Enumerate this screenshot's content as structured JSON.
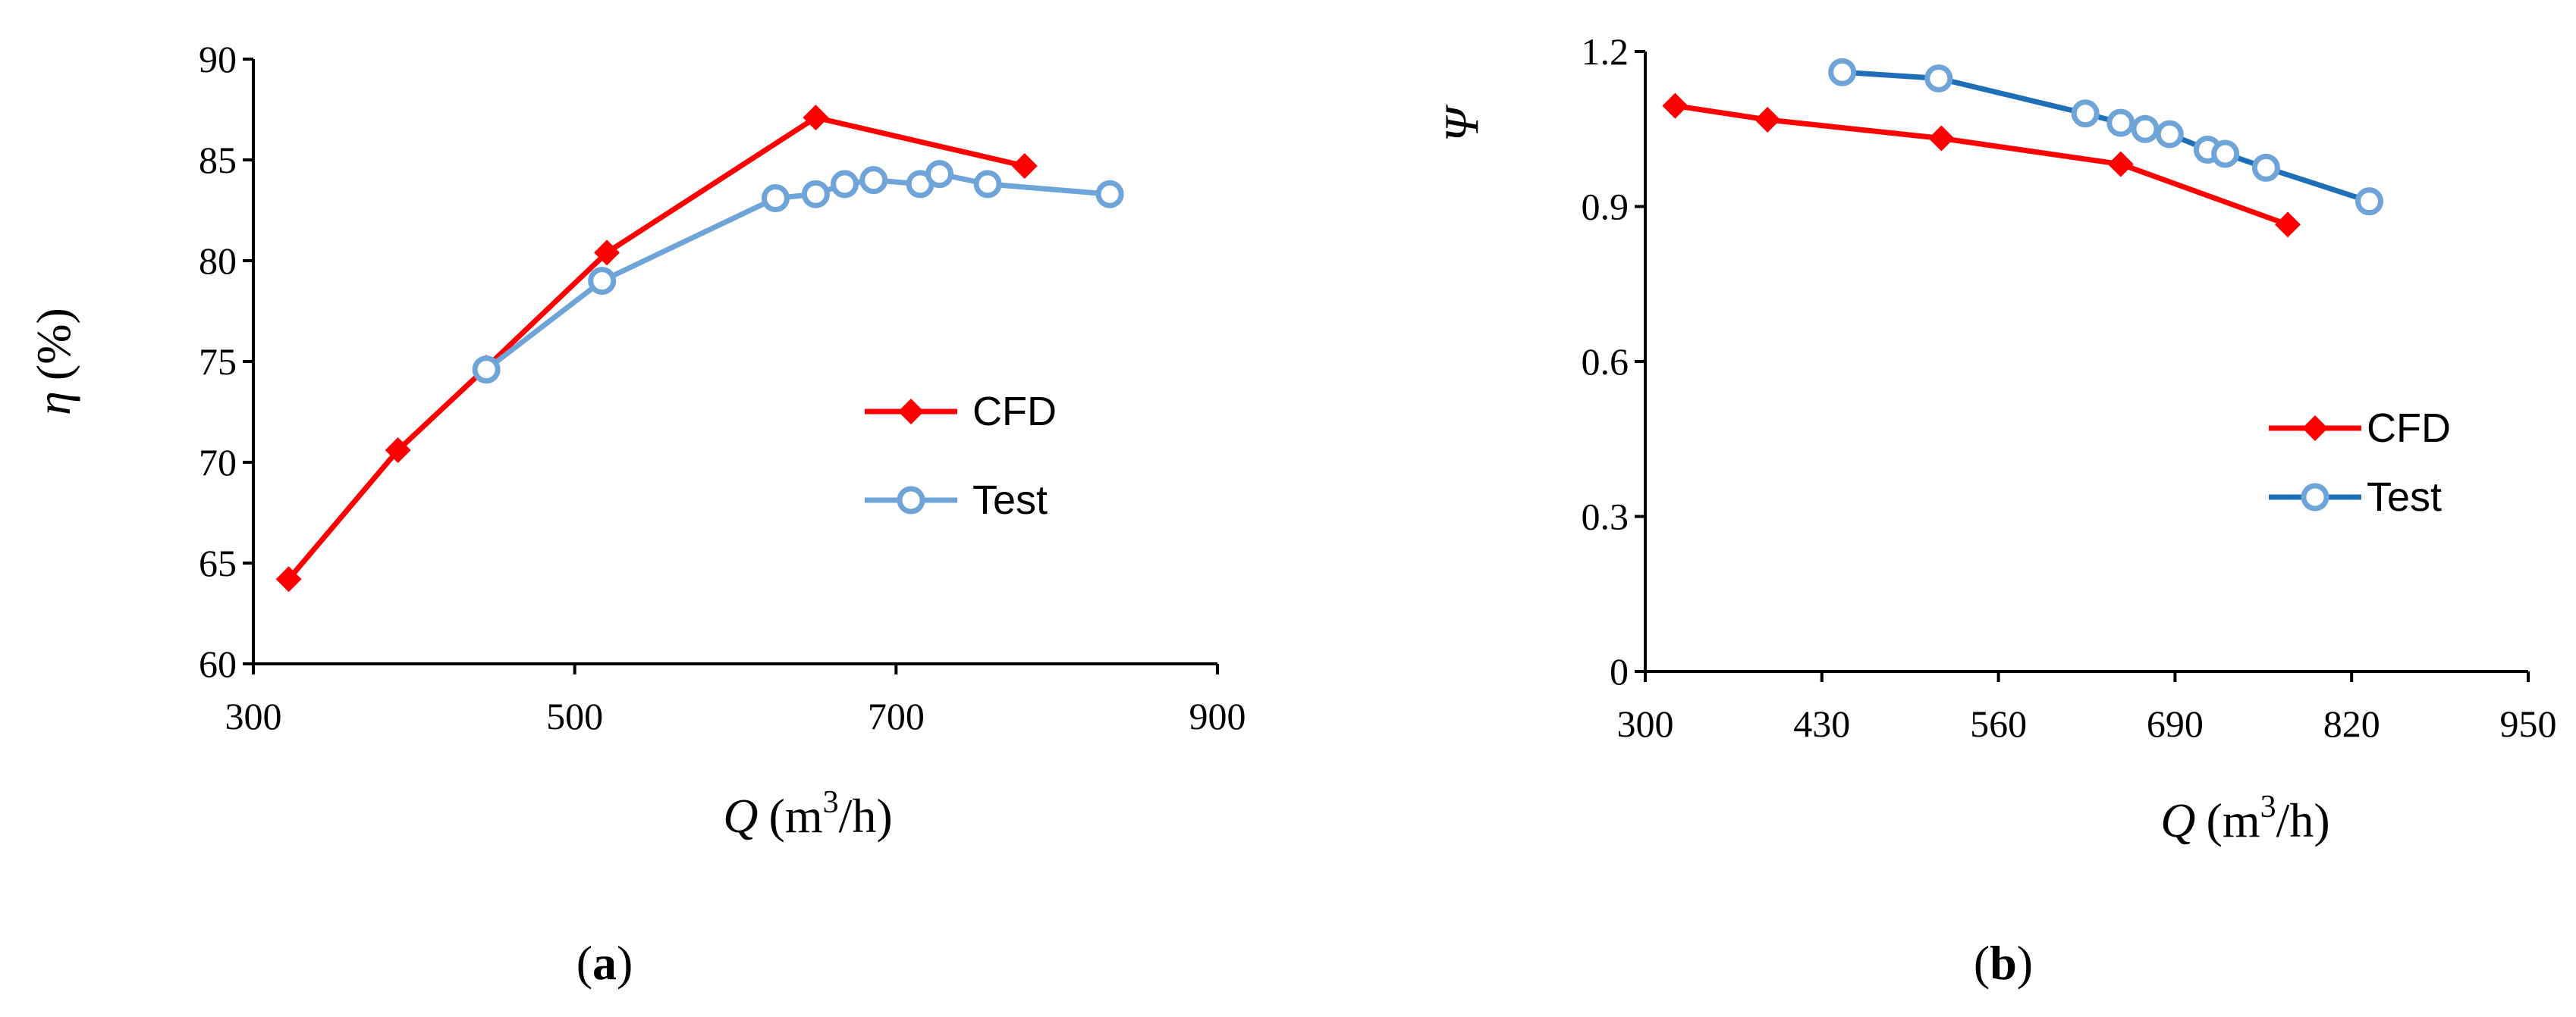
{
  "colors": {
    "cfd": "#FF0000",
    "test_a": "#6FA4D8",
    "test_b": "#1F6FB8"
  },
  "panel_labels": [
    "a",
    "b"
  ],
  "chart_data": [
    {
      "type": "line",
      "panel": "a",
      "xlabel_var": "Q",
      "xlabel_unit_pre": "(m",
      "xlabel_sup": "3",
      "xlabel_unit_post": "/h)",
      "ylabel_var": "η",
      "ylabel_unit": "(%)",
      "xlim": [
        300,
        900
      ],
      "ylim": [
        60,
        90
      ],
      "xticks": [
        300,
        500,
        700,
        900
      ],
      "yticks": [
        60,
        65,
        70,
        75,
        80,
        85,
        90
      ],
      "legend_position": "center-right",
      "series": [
        {
          "name": "CFD",
          "marker": "diamond",
          "x": [
            322,
            390,
            445,
            520,
            650,
            780
          ],
          "y": [
            64.2,
            70.6,
            74.7,
            80.4,
            87.1,
            84.7
          ]
        },
        {
          "name": "Test",
          "marker": "circle",
          "x": [
            445,
            517,
            625,
            650,
            668,
            686,
            715,
            727,
            757,
            833
          ],
          "y": [
            74.6,
            79.0,
            83.1,
            83.3,
            83.8,
            84.0,
            83.8,
            84.3,
            83.8,
            83.3
          ]
        }
      ]
    },
    {
      "type": "line",
      "panel": "b",
      "xlabel_var": "Q",
      "xlabel_unit_pre": "(m",
      "xlabel_sup": "3",
      "xlabel_unit_post": "/h)",
      "ylabel_var": "Ψ",
      "xlim": [
        300,
        950
      ],
      "ylim": [
        0,
        1.2
      ],
      "xticks": [
        300,
        430,
        560,
        690,
        820,
        950
      ],
      "ytick_labels": [
        "0",
        "0.3",
        "0.6",
        "0.9",
        "1.2"
      ],
      "legend_position": "bottom-right",
      "series": [
        {
          "name": "CFD",
          "marker": "diamond",
          "x": [
            322,
            390,
            518,
            650,
            773
          ],
          "y": [
            1.095,
            1.068,
            1.032,
            0.982,
            0.865
          ]
        },
        {
          "name": "Test",
          "marker": "circle",
          "x": [
            445,
            516,
            624,
            650,
            668,
            686,
            714,
            727,
            757,
            833
          ],
          "y": [
            1.16,
            1.148,
            1.08,
            1.062,
            1.05,
            1.04,
            1.01,
            1.002,
            0.975,
            0.91
          ]
        }
      ]
    }
  ]
}
